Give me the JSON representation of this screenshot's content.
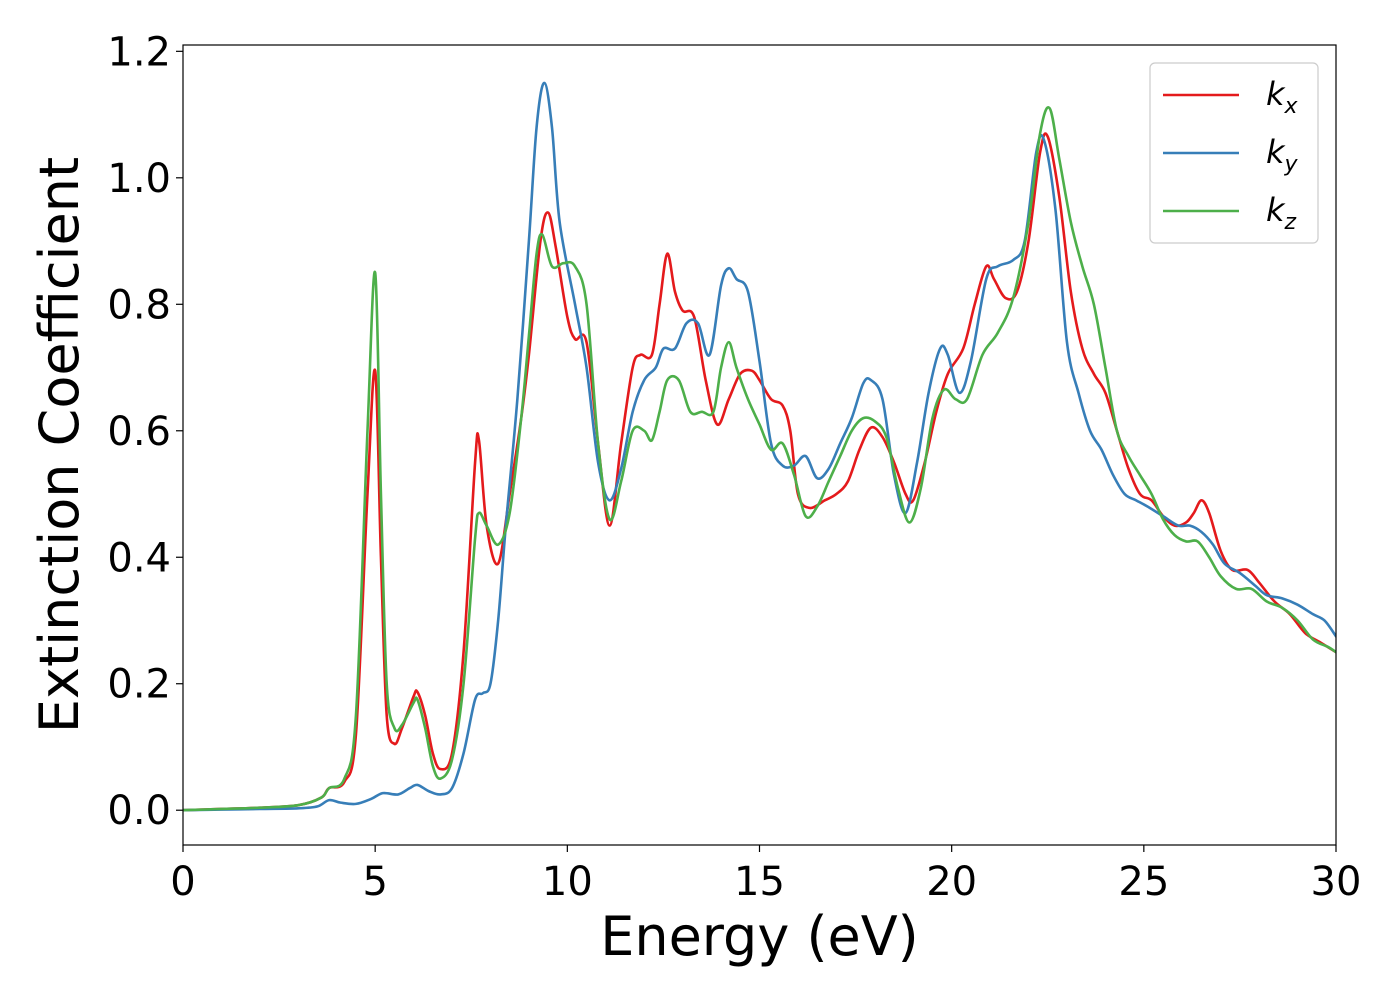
{
  "chart_data": {
    "type": "line",
    "title": "",
    "xlabel": "Energy (eV)",
    "ylabel": "Extinction Coefficient",
    "xlim": [
      0,
      30
    ],
    "ylim": [
      -0.055,
      1.21
    ],
    "xticks": [
      0,
      5,
      10,
      15,
      20,
      25,
      30
    ],
    "xtick_labels": [
      "0",
      "5",
      "10",
      "15",
      "20",
      "25",
      "30"
    ],
    "yticks": [
      0.0,
      0.2,
      0.4,
      0.6,
      0.8,
      1.0,
      1.2
    ],
    "ytick_labels": [
      "0.0",
      "0.2",
      "0.4",
      "0.6",
      "0.8",
      "1.0",
      "1.2"
    ],
    "grid": false,
    "legend_position": "top-right",
    "series": [
      {
        "name": "k_x",
        "label_main": "k",
        "label_sub": "x",
        "color": "#e41a1c",
        "points": [
          [
            0,
            0.0
          ],
          [
            1,
            0.002
          ],
          [
            2,
            0.004
          ],
          [
            3,
            0.008
          ],
          [
            3.6,
            0.02
          ],
          [
            3.8,
            0.035
          ],
          [
            4.2,
            0.045
          ],
          [
            4.5,
            0.12
          ],
          [
            4.8,
            0.5
          ],
          [
            5.0,
            0.695
          ],
          [
            5.15,
            0.4
          ],
          [
            5.3,
            0.15
          ],
          [
            5.5,
            0.105
          ],
          [
            5.7,
            0.13
          ],
          [
            6.0,
            0.18
          ],
          [
            6.1,
            0.187
          ],
          [
            6.3,
            0.15
          ],
          [
            6.5,
            0.09
          ],
          [
            6.7,
            0.065
          ],
          [
            7.0,
            0.09
          ],
          [
            7.3,
            0.25
          ],
          [
            7.6,
            0.55
          ],
          [
            7.7,
            0.585
          ],
          [
            7.9,
            0.45
          ],
          [
            8.2,
            0.39
          ],
          [
            8.5,
            0.5
          ],
          [
            8.8,
            0.62
          ],
          [
            9.0,
            0.72
          ],
          [
            9.3,
            0.9
          ],
          [
            9.5,
            0.945
          ],
          [
            9.7,
            0.89
          ],
          [
            10.0,
            0.78
          ],
          [
            10.2,
            0.745
          ],
          [
            10.5,
            0.74
          ],
          [
            10.8,
            0.58
          ],
          [
            11.1,
            0.45
          ],
          [
            11.4,
            0.58
          ],
          [
            11.7,
            0.7
          ],
          [
            11.9,
            0.72
          ],
          [
            12.2,
            0.72
          ],
          [
            12.4,
            0.8
          ],
          [
            12.6,
            0.88
          ],
          [
            12.8,
            0.82
          ],
          [
            13.0,
            0.79
          ],
          [
            13.3,
            0.78
          ],
          [
            13.6,
            0.68
          ],
          [
            13.9,
            0.61
          ],
          [
            14.2,
            0.65
          ],
          [
            14.5,
            0.69
          ],
          [
            14.8,
            0.695
          ],
          [
            15.0,
            0.68
          ],
          [
            15.3,
            0.65
          ],
          [
            15.6,
            0.64
          ],
          [
            15.8,
            0.6
          ],
          [
            16.0,
            0.5
          ],
          [
            16.3,
            0.478
          ],
          [
            16.7,
            0.49
          ],
          [
            17.0,
            0.5
          ],
          [
            17.3,
            0.52
          ],
          [
            17.6,
            0.57
          ],
          [
            17.9,
            0.605
          ],
          [
            18.2,
            0.59
          ],
          [
            18.5,
            0.55
          ],
          [
            18.8,
            0.5
          ],
          [
            19.0,
            0.49
          ],
          [
            19.3,
            0.55
          ],
          [
            19.6,
            0.63
          ],
          [
            19.9,
            0.69
          ],
          [
            20.3,
            0.73
          ],
          [
            20.6,
            0.8
          ],
          [
            20.9,
            0.86
          ],
          [
            21.1,
            0.84
          ],
          [
            21.4,
            0.81
          ],
          [
            21.7,
            0.82
          ],
          [
            22.0,
            0.9
          ],
          [
            22.3,
            1.04
          ],
          [
            22.5,
            1.065
          ],
          [
            22.8,
            0.97
          ],
          [
            23.1,
            0.82
          ],
          [
            23.4,
            0.73
          ],
          [
            23.7,
            0.69
          ],
          [
            24.0,
            0.66
          ],
          [
            24.3,
            0.6
          ],
          [
            24.6,
            0.54
          ],
          [
            24.9,
            0.5
          ],
          [
            25.2,
            0.49
          ],
          [
            25.5,
            0.465
          ],
          [
            25.8,
            0.45
          ],
          [
            26.1,
            0.455
          ],
          [
            26.3,
            0.47
          ],
          [
            26.5,
            0.49
          ],
          [
            26.7,
            0.47
          ],
          [
            27.0,
            0.41
          ],
          [
            27.3,
            0.38
          ],
          [
            27.7,
            0.38
          ],
          [
            28.0,
            0.36
          ],
          [
            28.4,
            0.33
          ],
          [
            28.8,
            0.31
          ],
          [
            29.2,
            0.28
          ],
          [
            29.6,
            0.265
          ],
          [
            30,
            0.25
          ]
        ]
      },
      {
        "name": "k_y",
        "label_main": "k",
        "label_sub": "y",
        "color": "#377eb8",
        "points": [
          [
            0,
            0.0
          ],
          [
            1,
            0.001
          ],
          [
            2,
            0.002
          ],
          [
            3,
            0.003
          ],
          [
            3.5,
            0.006
          ],
          [
            3.8,
            0.016
          ],
          [
            4.1,
            0.012
          ],
          [
            4.5,
            0.01
          ],
          [
            4.9,
            0.018
          ],
          [
            5.2,
            0.027
          ],
          [
            5.6,
            0.025
          ],
          [
            5.9,
            0.035
          ],
          [
            6.1,
            0.04
          ],
          [
            6.4,
            0.03
          ],
          [
            6.7,
            0.025
          ],
          [
            7.0,
            0.035
          ],
          [
            7.3,
            0.09
          ],
          [
            7.6,
            0.175
          ],
          [
            7.8,
            0.185
          ],
          [
            8.0,
            0.2
          ],
          [
            8.2,
            0.3
          ],
          [
            8.4,
            0.45
          ],
          [
            8.7,
            0.65
          ],
          [
            9.0,
            0.9
          ],
          [
            9.2,
            1.08
          ],
          [
            9.4,
            1.15
          ],
          [
            9.6,
            1.08
          ],
          [
            9.8,
            0.93
          ],
          [
            10.2,
            0.8
          ],
          [
            10.5,
            0.7
          ],
          [
            10.8,
            0.55
          ],
          [
            11.1,
            0.49
          ],
          [
            11.4,
            0.54
          ],
          [
            11.7,
            0.63
          ],
          [
            12.0,
            0.68
          ],
          [
            12.3,
            0.7
          ],
          [
            12.5,
            0.73
          ],
          [
            12.8,
            0.73
          ],
          [
            13.1,
            0.77
          ],
          [
            13.4,
            0.77
          ],
          [
            13.7,
            0.72
          ],
          [
            14.0,
            0.83
          ],
          [
            14.2,
            0.857
          ],
          [
            14.4,
            0.84
          ],
          [
            14.7,
            0.82
          ],
          [
            15.0,
            0.71
          ],
          [
            15.3,
            0.58
          ],
          [
            15.6,
            0.545
          ],
          [
            15.9,
            0.545
          ],
          [
            16.2,
            0.56
          ],
          [
            16.5,
            0.525
          ],
          [
            16.8,
            0.54
          ],
          [
            17.1,
            0.58
          ],
          [
            17.4,
            0.62
          ],
          [
            17.7,
            0.675
          ],
          [
            17.9,
            0.68
          ],
          [
            18.2,
            0.65
          ],
          [
            18.5,
            0.53
          ],
          [
            18.8,
            0.47
          ],
          [
            19.1,
            0.55
          ],
          [
            19.4,
            0.66
          ],
          [
            19.7,
            0.73
          ],
          [
            19.9,
            0.72
          ],
          [
            20.2,
            0.66
          ],
          [
            20.5,
            0.71
          ],
          [
            20.9,
            0.84
          ],
          [
            21.2,
            0.86
          ],
          [
            21.6,
            0.87
          ],
          [
            21.9,
            0.9
          ],
          [
            22.2,
            1.04
          ],
          [
            22.4,
            1.06
          ],
          [
            22.7,
            0.95
          ],
          [
            23.0,
            0.74
          ],
          [
            23.3,
            0.66
          ],
          [
            23.6,
            0.6
          ],
          [
            23.9,
            0.57
          ],
          [
            24.2,
            0.53
          ],
          [
            24.5,
            0.5
          ],
          [
            24.8,
            0.49
          ],
          [
            25.1,
            0.48
          ],
          [
            25.5,
            0.465
          ],
          [
            25.9,
            0.45
          ],
          [
            26.2,
            0.45
          ],
          [
            26.5,
            0.44
          ],
          [
            26.8,
            0.42
          ],
          [
            27.1,
            0.39
          ],
          [
            27.5,
            0.375
          ],
          [
            27.9,
            0.355
          ],
          [
            28.2,
            0.34
          ],
          [
            28.6,
            0.335
          ],
          [
            29.0,
            0.325
          ],
          [
            29.4,
            0.31
          ],
          [
            29.7,
            0.3
          ],
          [
            30,
            0.275
          ]
        ]
      },
      {
        "name": "k_z",
        "label_main": "k",
        "label_sub": "z",
        "color": "#4daf4a",
        "points": [
          [
            0,
            0.0
          ],
          [
            1,
            0.002
          ],
          [
            2,
            0.004
          ],
          [
            3,
            0.008
          ],
          [
            3.6,
            0.02
          ],
          [
            3.8,
            0.035
          ],
          [
            4.2,
            0.05
          ],
          [
            4.5,
            0.15
          ],
          [
            4.8,
            0.6
          ],
          [
            5.0,
            0.85
          ],
          [
            5.15,
            0.5
          ],
          [
            5.3,
            0.2
          ],
          [
            5.5,
            0.13
          ],
          [
            5.7,
            0.135
          ],
          [
            6.0,
            0.17
          ],
          [
            6.1,
            0.175
          ],
          [
            6.3,
            0.13
          ],
          [
            6.5,
            0.07
          ],
          [
            6.7,
            0.05
          ],
          [
            7.0,
            0.08
          ],
          [
            7.3,
            0.2
          ],
          [
            7.6,
            0.43
          ],
          [
            7.7,
            0.47
          ],
          [
            7.9,
            0.45
          ],
          [
            8.2,
            0.42
          ],
          [
            8.5,
            0.47
          ],
          [
            8.8,
            0.62
          ],
          [
            9.0,
            0.75
          ],
          [
            9.2,
            0.88
          ],
          [
            9.35,
            0.91
          ],
          [
            9.6,
            0.86
          ],
          [
            9.9,
            0.865
          ],
          [
            10.2,
            0.86
          ],
          [
            10.5,
            0.8
          ],
          [
            10.8,
            0.58
          ],
          [
            11.1,
            0.46
          ],
          [
            11.4,
            0.52
          ],
          [
            11.7,
            0.6
          ],
          [
            12.0,
            0.6
          ],
          [
            12.2,
            0.585
          ],
          [
            12.4,
            0.63
          ],
          [
            12.6,
            0.68
          ],
          [
            12.9,
            0.68
          ],
          [
            13.2,
            0.63
          ],
          [
            13.5,
            0.63
          ],
          [
            13.8,
            0.63
          ],
          [
            14.0,
            0.7
          ],
          [
            14.2,
            0.74
          ],
          [
            14.4,
            0.7
          ],
          [
            14.7,
            0.65
          ],
          [
            15.0,
            0.61
          ],
          [
            15.3,
            0.57
          ],
          [
            15.6,
            0.58
          ],
          [
            15.9,
            0.53
          ],
          [
            16.2,
            0.465
          ],
          [
            16.5,
            0.48
          ],
          [
            16.8,
            0.52
          ],
          [
            17.1,
            0.56
          ],
          [
            17.4,
            0.6
          ],
          [
            17.7,
            0.62
          ],
          [
            18.0,
            0.615
          ],
          [
            18.3,
            0.59
          ],
          [
            18.6,
            0.51
          ],
          [
            18.9,
            0.455
          ],
          [
            19.2,
            0.51
          ],
          [
            19.5,
            0.62
          ],
          [
            19.8,
            0.665
          ],
          [
            20.1,
            0.65
          ],
          [
            20.4,
            0.65
          ],
          [
            20.8,
            0.72
          ],
          [
            21.2,
            0.755
          ],
          [
            21.6,
            0.81
          ],
          [
            22.0,
            0.93
          ],
          [
            22.3,
            1.07
          ],
          [
            22.55,
            1.11
          ],
          [
            22.8,
            1.03
          ],
          [
            23.1,
            0.93
          ],
          [
            23.4,
            0.86
          ],
          [
            23.7,
            0.8
          ],
          [
            24.0,
            0.7
          ],
          [
            24.3,
            0.6
          ],
          [
            24.6,
            0.56
          ],
          [
            24.9,
            0.53
          ],
          [
            25.2,
            0.5
          ],
          [
            25.5,
            0.46
          ],
          [
            25.8,
            0.435
          ],
          [
            26.1,
            0.425
          ],
          [
            26.4,
            0.425
          ],
          [
            26.7,
            0.4
          ],
          [
            27.0,
            0.37
          ],
          [
            27.4,
            0.35
          ],
          [
            27.8,
            0.35
          ],
          [
            28.2,
            0.33
          ],
          [
            28.6,
            0.32
          ],
          [
            29.0,
            0.3
          ],
          [
            29.4,
            0.27
          ],
          [
            29.8,
            0.258
          ],
          [
            30,
            0.25
          ]
        ]
      }
    ]
  }
}
